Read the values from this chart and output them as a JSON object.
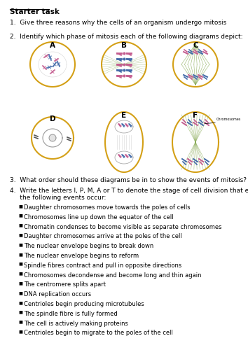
{
  "title": "Starter task",
  "q1": "1.  Give three reasons why the cells of an organism undergo mitosis",
  "q2": "2.  Identify which phase of mitosis each of the following diagrams depict:",
  "q3": "3.  What order should these diagrams be in to show the events of mitosis?",
  "q4_line1": "4.  Write the letters I, P, M, A or T to denote the stage of cell division that each of",
  "q4_line2": "     the following events occur:",
  "bullet_items": [
    "Daughter chromosomes move towards the poles of cells",
    "Chromosomes line up down the equator of the cell",
    "Chromatin condenses to become visible as separate chromosomes",
    "Daughter chromosomes arrive at the poles of the cell",
    "The nuclear envelope begins to break down",
    "The nuclear envelope begins to reform",
    "Spindle fibres contract and pull in opposite directions",
    "Chromosomes decondense and become long and thin again",
    "The centromere splits apart",
    "DNA replication occurs",
    "Centrioles begin producing microtubules",
    "The spindle fibre is fully formed",
    "The cell is actively making proteins",
    "Centrioles begin to migrate to the poles of the cell"
  ],
  "bg_color": "#ffffff",
  "cell_border_color": "#d4a017",
  "text_color": "#000000",
  "font_size": 6.5
}
